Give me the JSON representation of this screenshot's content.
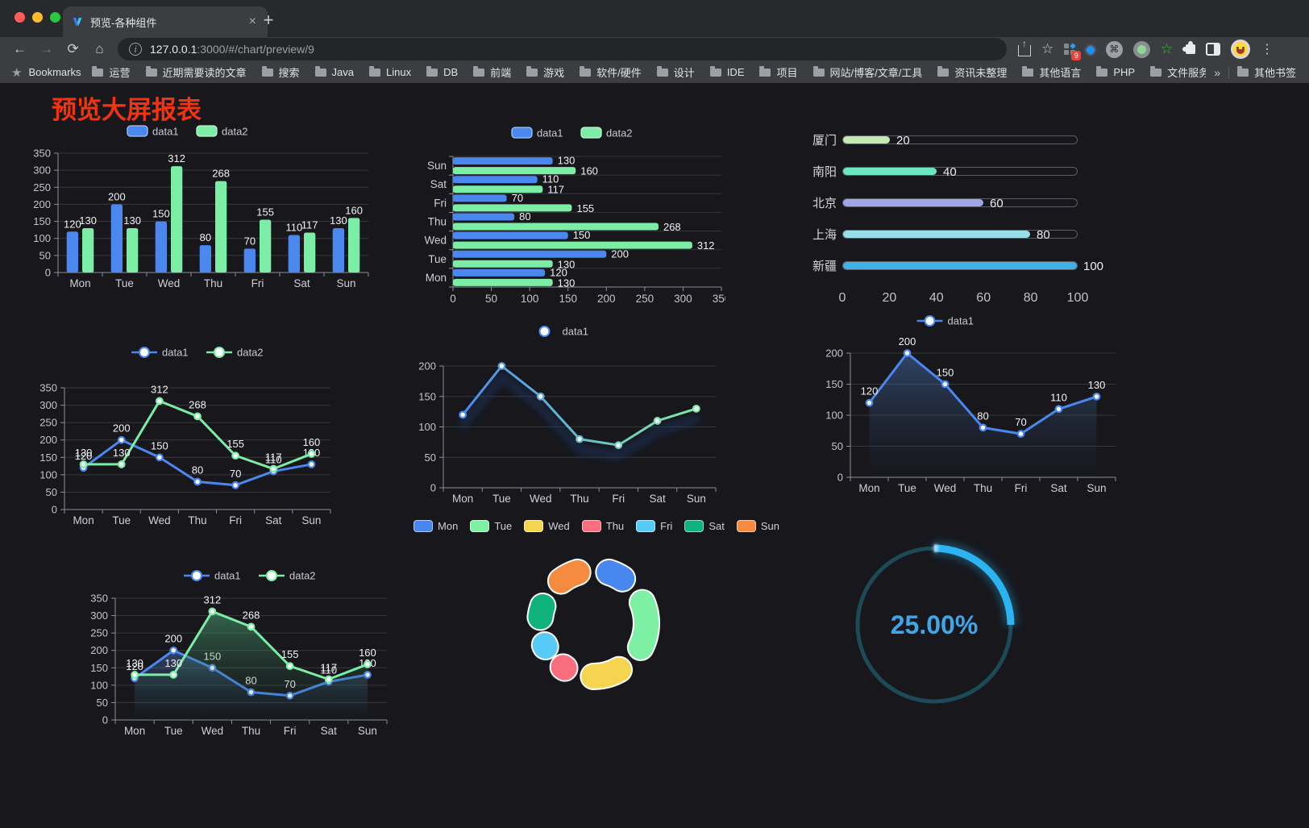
{
  "browser": {
    "tab_title": "预览-各种组件",
    "url_host": "127.0.0.1",
    "url_rest": ":3000/#/chart/preview/9",
    "bookmarks_label": "Bookmarks",
    "bookmarks": [
      "运营",
      "近期需要读的文章",
      "搜索",
      "Java",
      "Linux",
      "DB",
      "前端",
      "游戏",
      "软件/硬件",
      "设计",
      "IDE",
      "项目",
      "网站/博客/文章/工具",
      "资讯未整理",
      "其他语言",
      "PHP",
      "文件服务器"
    ],
    "bookmarks_overflow": "»",
    "other_bookmarks": "其他书签",
    "extension_badge": "9",
    "new_tab_label": "+",
    "tab_close_label": "×"
  },
  "page": {
    "title": "预览大屏报表"
  },
  "chart_data": [
    {
      "id": "bar-vertical",
      "type": "bar",
      "categories": [
        "Mon",
        "Tue",
        "Wed",
        "Thu",
        "Fri",
        "Sat",
        "Sun"
      ],
      "series": [
        {
          "name": "data1",
          "type": "bar",
          "color": "#4A87EE",
          "values": [
            120,
            200,
            150,
            80,
            70,
            110,
            130
          ]
        },
        {
          "name": "data2",
          "type": "bar",
          "color": "#7CEDA5",
          "values": [
            130,
            130,
            312,
            268,
            155,
            117,
            160
          ]
        }
      ],
      "ylim": [
        0,
        350
      ],
      "ystep": 50,
      "legend_position": "top",
      "grid": true
    },
    {
      "id": "bar-horizontal",
      "type": "bar-horizontal",
      "categories_top_to_bottom": [
        "Sun",
        "Sat",
        "Fri",
        "Thu",
        "Wed",
        "Tue",
        "Mon"
      ],
      "series": [
        {
          "name": "data1",
          "color": "#4A87EE",
          "values": [
            130,
            110,
            70,
            80,
            150,
            200,
            120
          ]
        },
        {
          "name": "data2",
          "color": "#7CEDA5",
          "values": [
            160,
            117,
            155,
            268,
            312,
            130,
            130
          ]
        }
      ],
      "xlim": [
        0,
        350
      ],
      "xstep": 50,
      "legend_position": "top"
    },
    {
      "id": "progress-bars",
      "type": "bar-progress",
      "items": [
        {
          "label": "厦门",
          "value": 20,
          "color": "#c4ebad"
        },
        {
          "label": "南阳",
          "value": 40,
          "color": "#6be6c1"
        },
        {
          "label": "北京",
          "value": 60,
          "color": "#a0a7e6"
        },
        {
          "label": "上海",
          "value": 80,
          "color": "#96dee8"
        },
        {
          "label": "新疆",
          "value": 100,
          "color": "#3fb1e3"
        }
      ],
      "xlim": [
        0,
        100
      ],
      "ticks": [
        0,
        20,
        40,
        60,
        80,
        100
      ]
    },
    {
      "id": "line-two-series",
      "type": "line",
      "categories": [
        "Mon",
        "Tue",
        "Wed",
        "Thu",
        "Fri",
        "Sat",
        "Sun"
      ],
      "series": [
        {
          "name": "data1",
          "color": "#4A87EE",
          "values": [
            120,
            200,
            150,
            80,
            70,
            110,
            130
          ]
        },
        {
          "name": "data2",
          "color": "#7CEDA5",
          "values": [
            130,
            130,
            312,
            268,
            155,
            117,
            160
          ]
        }
      ],
      "ylim": [
        0,
        350
      ],
      "ystep": 50,
      "legend_position": "top",
      "grid": true
    },
    {
      "id": "line-gradient",
      "type": "line",
      "categories": [
        "Mon",
        "Tue",
        "Wed",
        "Thu",
        "Fri",
        "Sat",
        "Sun"
      ],
      "series": [
        {
          "name": "data1",
          "color": "#4D8BF0",
          "color2": "#7CEDA5",
          "labels": false,
          "values": [
            120,
            200,
            150,
            80,
            70,
            110,
            130
          ]
        }
      ],
      "ylim": [
        0,
        200
      ],
      "ystep": 50,
      "legend_position": "top",
      "grid": true
    },
    {
      "id": "line-area",
      "type": "line",
      "categories": [
        "Mon",
        "Tue",
        "Wed",
        "Thu",
        "Fri",
        "Sat",
        "Sun"
      ],
      "series": [
        {
          "name": "data1",
          "color": "#4A87EE",
          "area": true,
          "values": [
            120,
            200,
            150,
            80,
            70,
            110,
            130
          ]
        }
      ],
      "ylim": [
        0,
        200
      ],
      "ystep": 50,
      "legend_position": "top",
      "grid": true
    },
    {
      "id": "line-area-two",
      "type": "line",
      "categories": [
        "Mon",
        "Tue",
        "Wed",
        "Thu",
        "Fri",
        "Sat",
        "Sun"
      ],
      "series": [
        {
          "name": "data1",
          "color": "#4A87EE",
          "area": true,
          "values": [
            120,
            200,
            150,
            80,
            70,
            110,
            130
          ]
        },
        {
          "name": "data2",
          "color": "#7CEDA5",
          "area": true,
          "values": [
            130,
            130,
            312,
            268,
            155,
            117,
            160
          ]
        }
      ],
      "ylim": [
        0,
        350
      ],
      "ystep": 50,
      "legend_position": "top",
      "grid": true
    },
    {
      "id": "pie-donut",
      "type": "pie",
      "categories": [
        "Mon",
        "Tue",
        "Wed",
        "Thu",
        "Fri",
        "Sat",
        "Sun"
      ],
      "values": [
        120,
        200,
        150,
        80,
        70,
        110,
        130
      ],
      "colors": [
        "#4886F0",
        "#7DF0A3",
        "#F5D550",
        "#FA6D7E",
        "#55CBF5",
        "#10B27C",
        "#F58B3E"
      ],
      "legend_position": "top",
      "donut": true
    },
    {
      "id": "gauge",
      "type": "gauge",
      "value": 25,
      "label": "25.00%",
      "color": "#2CB4F2",
      "track_color": "#1C4A57",
      "text_color": "#3FA6E8"
    }
  ]
}
